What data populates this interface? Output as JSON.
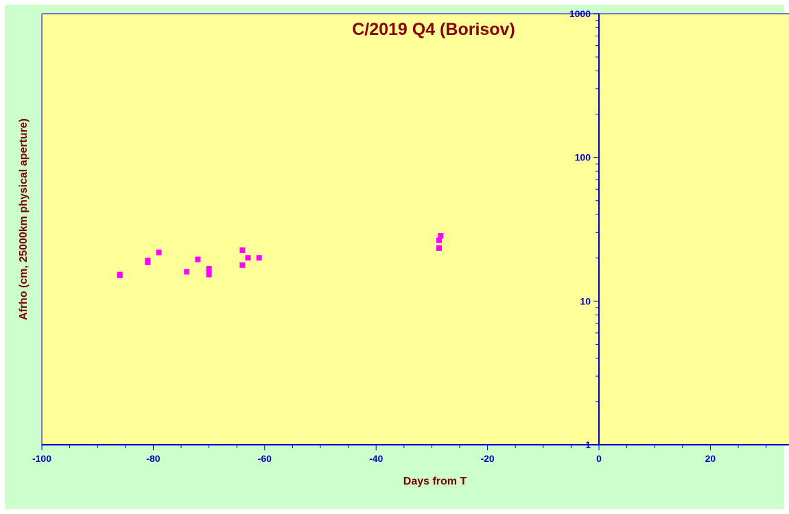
{
  "chart_data": {
    "type": "scatter",
    "title": "C/2019 Q4 (Borisov)",
    "xlabel": "Days from T",
    "ylabel": "Afrho (cm, 25000km physical aperture)",
    "xlim": [
      -100,
      34
    ],
    "ylim": [
      1,
      1000
    ],
    "yscale": "log",
    "x_ticks": [
      -100,
      -80,
      -60,
      -40,
      -20,
      0,
      20
    ],
    "y_ticks": [
      1,
      10,
      100,
      1000
    ],
    "grid": false,
    "series": [
      {
        "color": "#ff00ff",
        "marker": "square",
        "points": [
          {
            "x": -86,
            "y": 15.3
          },
          {
            "x": -86,
            "y": 15.1
          },
          {
            "x": -81,
            "y": 19.2
          },
          {
            "x": -81,
            "y": 18.6
          },
          {
            "x": -79,
            "y": 21.8
          },
          {
            "x": -74,
            "y": 16.0
          },
          {
            "x": -72,
            "y": 19.5
          },
          {
            "x": -70,
            "y": 16.8
          },
          {
            "x": -70,
            "y": 16.2
          },
          {
            "x": -70,
            "y": 15.3
          },
          {
            "x": -64,
            "y": 22.6
          },
          {
            "x": -64,
            "y": 17.8
          },
          {
            "x": -63,
            "y": 20.0
          },
          {
            "x": -61,
            "y": 20.0
          },
          {
            "x": -28.7,
            "y": 23.4
          },
          {
            "x": -28.7,
            "y": 26.5
          },
          {
            "x": -28.4,
            "y": 28.5
          }
        ]
      }
    ]
  },
  "colors": {
    "frame_background": "#ccffcc",
    "plot_background": "#ffff99",
    "plot_border": "#7777cc",
    "marker": "#ff00ff",
    "tick_label": "#0000cc",
    "axis_title": "#7a0000",
    "title": "#8b0000"
  }
}
